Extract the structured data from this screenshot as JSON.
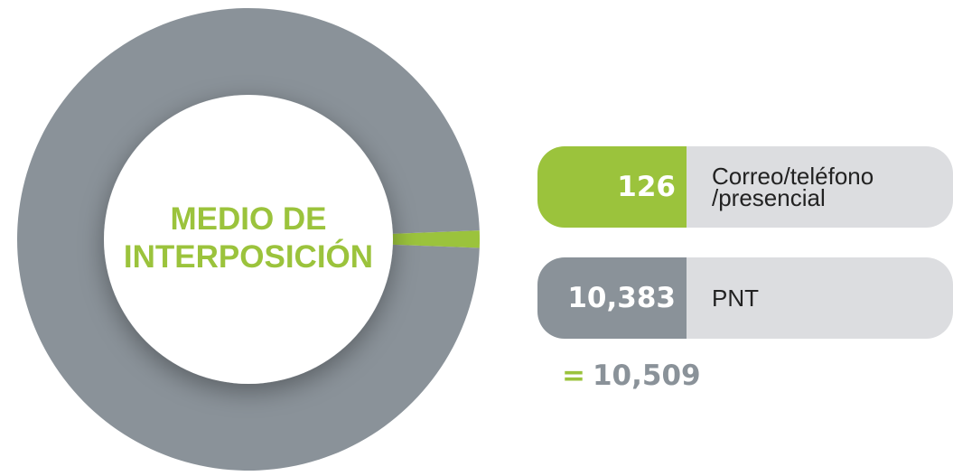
{
  "chart_data": {
    "type": "pie",
    "title": "MEDIO DE INTERPOSICIÓN",
    "categories": [
      "Correo/teléfono /presencial",
      "PNT"
    ],
    "values": [
      126,
      10383
    ],
    "value_labels": [
      "126",
      "10,383"
    ],
    "colors": [
      "#9bc33c",
      "#8a9299"
    ],
    "total_prefix": "=",
    "total": {
      "value": 10509,
      "label": "10,509"
    }
  }
}
